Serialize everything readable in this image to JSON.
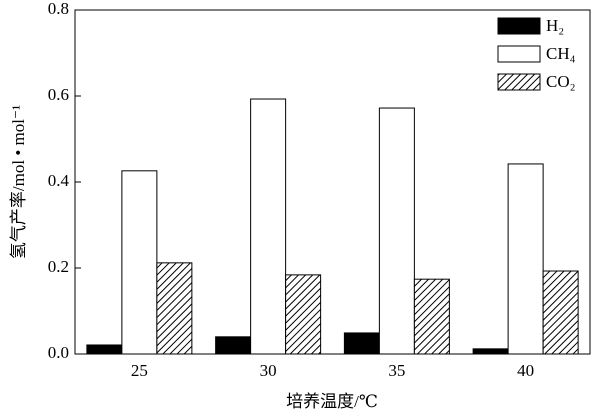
{
  "chart_data": {
    "type": "bar",
    "xlabel": "培养温度/℃",
    "ylabel": "氢气产率/mol • mol⁻¹",
    "categories": [
      "25",
      "30",
      "35",
      "40"
    ],
    "series": [
      {
        "name": "H₂",
        "color": "#000000",
        "values": [
          0.021,
          0.04,
          0.049,
          0.012
        ]
      },
      {
        "name": "CH₄",
        "color": "#ffffff",
        "values": [
          0.426,
          0.593,
          0.572,
          0.442
        ]
      },
      {
        "name": "CO₂",
        "color": "#000000",
        "pattern": "hatch",
        "values": [
          0.212,
          0.184,
          0.174,
          0.193
        ]
      }
    ],
    "ylim": [
      0,
      0.8
    ],
    "yticks": [
      {
        "value": 0,
        "label": "0.0"
      },
      0.2,
      0.4,
      0.6,
      0.8
    ],
    "legend": "upper right"
  }
}
